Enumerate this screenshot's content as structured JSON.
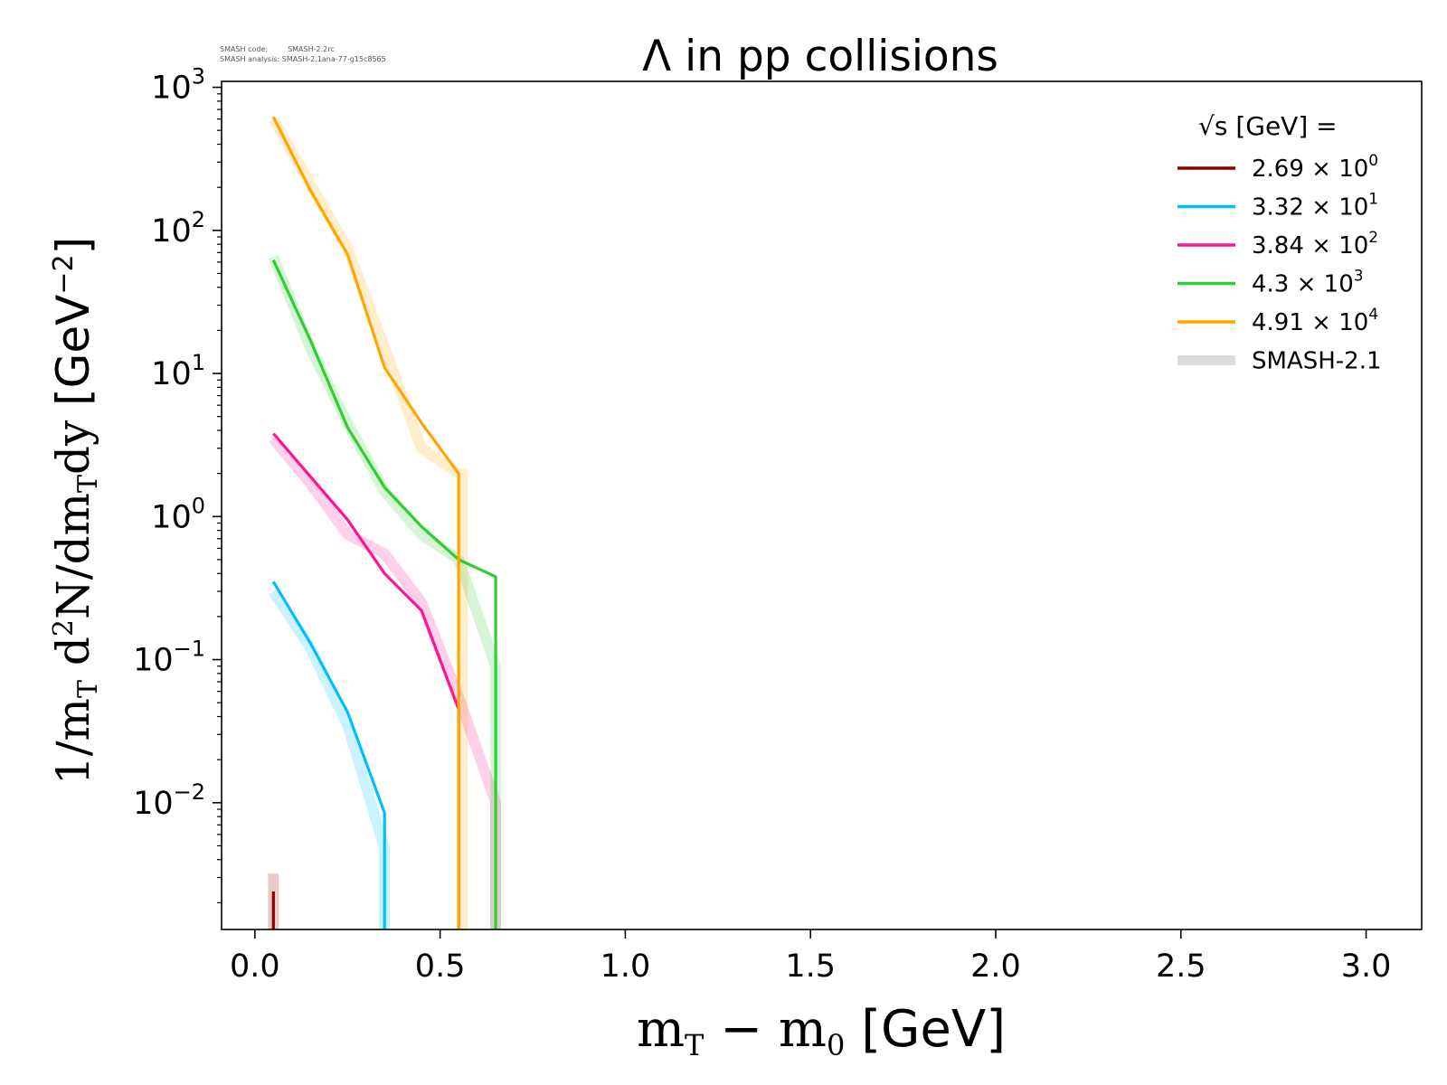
{
  "annotations": {
    "code_label": "SMASH code:",
    "code_value": "SMASH-2.2rc",
    "analysis_label": "SMASH analysis:",
    "analysis_value": "SMASH-2.1ana-77-g15c8565"
  },
  "chart_data": {
    "type": "line",
    "title": "Λ in pp collisions",
    "xlabel": "m_T − m_0 [GeV]",
    "ylabel": "1/m_T d²N/dm_T dy [GeV⁻²]",
    "xlim": [
      -0.09,
      3.15
    ],
    "ylim": [
      0.0013,
      1100
    ],
    "yscale": "log",
    "grid": false,
    "legend_position": "top-right",
    "legend_title": "√s [GeV] =",
    "x_ticks": [
      {
        "value": 0.0,
        "label": "0.0"
      },
      {
        "value": 0.5,
        "label": "0.5"
      },
      {
        "value": 1.0,
        "label": "1.0"
      },
      {
        "value": 1.5,
        "label": "1.5"
      },
      {
        "value": 2.0,
        "label": "2.0"
      },
      {
        "value": 2.5,
        "label": "2.5"
      },
      {
        "value": 3.0,
        "label": "3.0"
      }
    ],
    "y_ticks": [
      {
        "value": 0.01,
        "mantissa": "10",
        "exponent": "−2"
      },
      {
        "value": 0.1,
        "mantissa": "10",
        "exponent": "−1"
      },
      {
        "value": 1,
        "mantissa": "10",
        "exponent": "0"
      },
      {
        "value": 10,
        "mantissa": "10",
        "exponent": "1"
      },
      {
        "value": 100,
        "mantissa": "10",
        "exponent": "2"
      },
      {
        "value": 1000,
        "mantissa": "10",
        "exponent": "3"
      }
    ],
    "series": [
      {
        "name": "2.69 × 10⁰",
        "legend_mantissa": "2.69 × 10",
        "legend_exp": "0",
        "color": "#8b0000",
        "x": [
          0.05,
          0.05
        ],
        "y": [
          0.0024,
          0.0013
        ],
        "ref_x": [
          0.05,
          0.05
        ],
        "ref_y": [
          0.0032,
          0.0013
        ]
      },
      {
        "name": "3.32 × 10¹",
        "legend_mantissa": "3.32 × 10",
        "legend_exp": "1",
        "color": "#00bfff",
        "x": [
          0.05,
          0.15,
          0.25,
          0.35,
          0.35
        ],
        "y": [
          0.35,
          0.13,
          0.043,
          0.0085,
          0.0013
        ],
        "ref_x": [
          0.05,
          0.15,
          0.25,
          0.35,
          0.35
        ],
        "ref_y": [
          0.3,
          0.12,
          0.035,
          0.0048,
          0.0013
        ]
      },
      {
        "name": "3.84 × 10²",
        "legend_mantissa": "3.84 × 10",
        "legend_exp": "2",
        "color": "#ff1493",
        "x": [
          0.05,
          0.15,
          0.25,
          0.35,
          0.45,
          0.55,
          0.55
        ],
        "y": [
          3.8,
          1.9,
          0.95,
          0.4,
          0.22,
          0.045,
          0.0013
        ],
        "ref_x": [
          0.05,
          0.15,
          0.25,
          0.35,
          0.45,
          0.55,
          0.65,
          0.65
        ],
        "ref_y": [
          3.5,
          1.7,
          0.75,
          0.55,
          0.25,
          0.055,
          0.01,
          0.0013
        ]
      },
      {
        "name": "4.3 × 10³",
        "legend_mantissa": "4.3 × 10",
        "legend_exp": "3",
        "color": "#32cd32",
        "x": [
          0.05,
          0.15,
          0.25,
          0.35,
          0.45,
          0.55,
          0.65,
          0.65
        ],
        "y": [
          62,
          17,
          4.2,
          1.6,
          0.85,
          0.5,
          0.38,
          0.0013
        ],
        "ref_x": [
          0.05,
          0.15,
          0.25,
          0.35,
          0.45,
          0.55,
          0.65,
          0.65
        ],
        "ref_y": [
          65,
          15,
          4.5,
          1.5,
          0.75,
          0.5,
          0.09,
          0.0013
        ]
      },
      {
        "name": "4.91 × 10⁴",
        "legend_mantissa": "4.91 × 10",
        "legend_exp": "4",
        "color": "#ffa500",
        "x": [
          0.05,
          0.15,
          0.25,
          0.35,
          0.45,
          0.55,
          0.55
        ],
        "y": [
          620,
          190,
          68,
          11,
          4.5,
          2.0,
          0.0013
        ],
        "ref_x": [
          0.05,
          0.15,
          0.25,
          0.35,
          0.45,
          0.55,
          0.56,
          0.56
        ],
        "ref_y": [
          600,
          210,
          75,
          15,
          3.0,
          2.0,
          2.0,
          0.0013
        ]
      }
    ],
    "reference": {
      "name": "SMASH-2.1",
      "color": "#d3d3d3"
    }
  }
}
